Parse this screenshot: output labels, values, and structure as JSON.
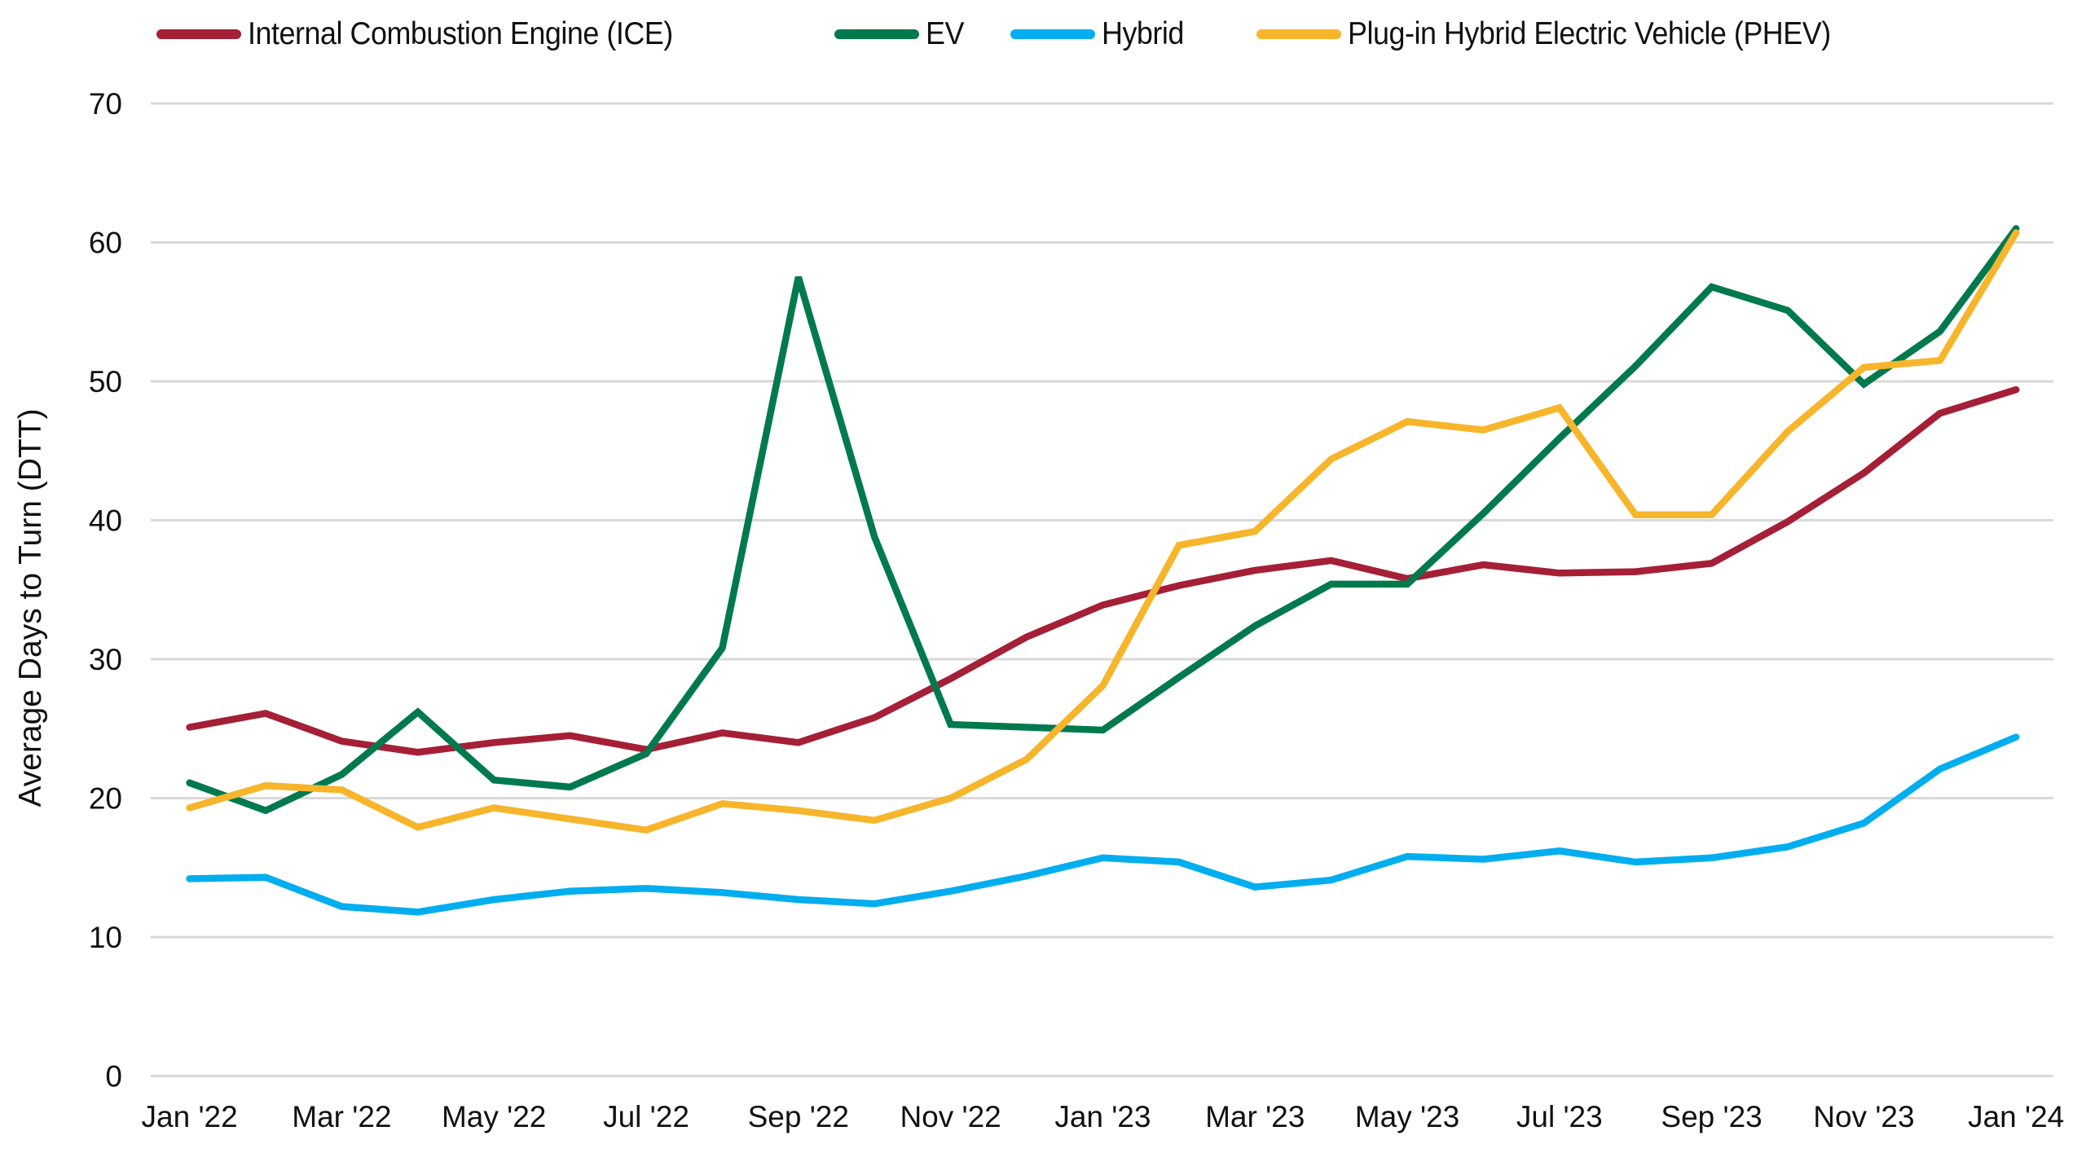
{
  "legend": {
    "items": [
      {
        "label": "Internal Combustion Engine (ICE)",
        "color": "#A51F37"
      },
      {
        "label": "EV",
        "color": "#007A4D"
      },
      {
        "label": "Hybrid",
        "color": "#00AEEF"
      },
      {
        "label": "Plug-in Hybrid Electric Vehicle (PHEV)",
        "color": "#F7B52C"
      }
    ]
  },
  "axes": {
    "ylabel": "Average Days to Turn (DTT)",
    "y_ticks": [
      "0",
      "10",
      "20",
      "30",
      "40",
      "50",
      "60",
      "70"
    ],
    "x_ticks": [
      "Jan '22",
      "Mar '22",
      "May '22",
      "Jul '22",
      "Sep '22",
      "Nov '22",
      "Jan '23",
      "Mar '23",
      "May '23",
      "Jul '23",
      "Sep '23",
      "Nov '23",
      "Jan '24"
    ]
  },
  "chart_data": {
    "type": "line",
    "title": "",
    "xlabel": "",
    "ylabel": "Average Days to Turn (DTT)",
    "ylim": [
      0,
      70
    ],
    "y_ticks": [
      0,
      10,
      20,
      30,
      40,
      50,
      60,
      70
    ],
    "grid": "horizontal",
    "legend_position": "top",
    "x": [
      "Jan '22",
      "Feb '22",
      "Mar '22",
      "Apr '22",
      "May '22",
      "Jun '22",
      "Jul '22",
      "Aug '22",
      "Sep '22",
      "Oct '22",
      "Nov '22",
      "Dec '22",
      "Jan '23",
      "Feb '23",
      "Mar '23",
      "Apr '23",
      "May '23",
      "Jun '23",
      "Jul '23",
      "Aug '23",
      "Sep '23",
      "Oct '23",
      "Nov '23",
      "Dec '23",
      "Jan '24"
    ],
    "x_tick_labels": [
      "Jan '22",
      "Mar '22",
      "May '22",
      "Jul '22",
      "Sep '22",
      "Nov '22",
      "Jan '23",
      "Mar '23",
      "May '23",
      "Jul '23",
      "Sep '23",
      "Nov '23",
      "Jan '24"
    ],
    "series": [
      {
        "name": "Internal Combustion Engine (ICE)",
        "color": "#A51F37",
        "values": [
          25.1,
          26.1,
          24.1,
          23.3,
          24.0,
          24.5,
          23.5,
          24.7,
          24.0,
          25.8,
          28.6,
          31.6,
          33.9,
          35.3,
          36.4,
          37.1,
          35.8,
          36.8,
          36.2,
          36.3,
          36.9,
          39.9,
          43.4,
          47.7,
          49.4
        ]
      },
      {
        "name": "EV",
        "color": "#007A4D",
        "values": [
          21.1,
          19.1,
          21.7,
          26.2,
          21.3,
          20.8,
          23.2,
          30.8,
          57.5,
          38.8,
          25.3,
          25.1,
          24.9,
          28.7,
          32.4,
          35.4,
          35.4,
          40.5,
          45.9,
          51.1,
          56.8,
          55.1,
          49.8,
          53.6,
          61.0
        ]
      },
      {
        "name": "Hybrid",
        "color": "#00AEEF",
        "values": [
          14.2,
          14.3,
          12.2,
          11.8,
          12.7,
          13.3,
          13.5,
          13.2,
          12.7,
          12.4,
          13.3,
          14.4,
          15.7,
          15.4,
          13.6,
          14.1,
          15.8,
          15.6,
          16.2,
          15.4,
          15.7,
          16.5,
          18.2,
          22.1,
          24.4
        ]
      },
      {
        "name": "Plug-in Hybrid Electric Vehicle (PHEV)",
        "color": "#F7B52C",
        "values": [
          19.3,
          20.9,
          20.6,
          17.9,
          19.3,
          18.5,
          17.7,
          19.6,
          19.1,
          18.4,
          20.0,
          22.8,
          28.1,
          38.2,
          39.2,
          44.4,
          47.1,
          46.5,
          48.1,
          40.4,
          40.4,
          46.4,
          51.0,
          51.5,
          60.7
        ]
      }
    ]
  }
}
